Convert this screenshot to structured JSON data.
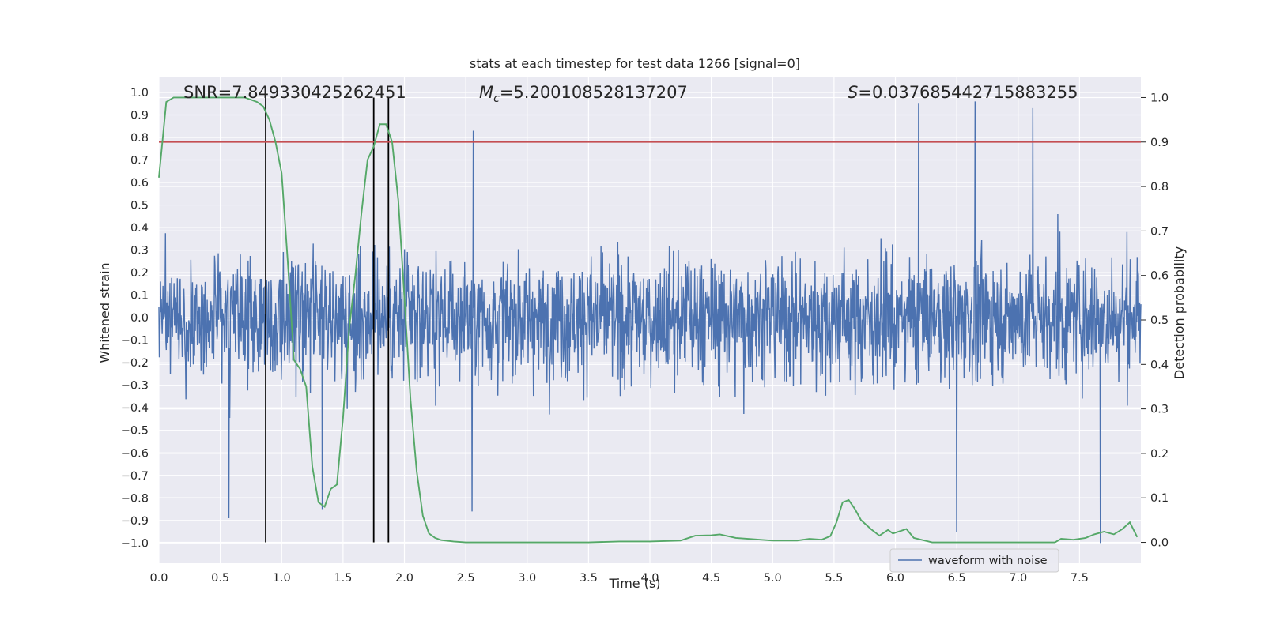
{
  "chart_data": {
    "type": "line",
    "title": "stats at each timestep for test data 1266 [signal=0]",
    "xlabel": "Time (s)",
    "ylabel_left": "Whitened strain",
    "ylabel_right": "Detection probability",
    "xlim": [
      0.0,
      8.0
    ],
    "ylim_left": [
      -1.09,
      1.07
    ],
    "ylim_right": [
      -0.047,
      1.047
    ],
    "x_ticks": [
      "0.0",
      "0.5",
      "1.0",
      "1.5",
      "2.0",
      "2.5",
      "3.0",
      "3.5",
      "4.0",
      "4.5",
      "5.0",
      "5.5",
      "6.0",
      "6.5",
      "7.0",
      "7.5"
    ],
    "y_ticks_left": [
      "1.0",
      "0.9",
      "0.8",
      "0.7",
      "0.6",
      "0.5",
      "0.4",
      "0.3",
      "0.2",
      "0.1",
      "0.0",
      "-0.1",
      "-0.2",
      "-0.3",
      "-0.4",
      "-0.5",
      "-0.6",
      "-0.7",
      "-0.8",
      "-0.9",
      "-1.0"
    ],
    "y_ticks_right": [
      "1.0",
      "0.9",
      "0.8",
      "0.7",
      "0.6",
      "0.5",
      "0.4",
      "0.3",
      "0.2",
      "0.1",
      "0.0"
    ],
    "grid": true,
    "legend_position": "lower-right",
    "annotations": {
      "snr": "SNR=7.849330425262451",
      "mc_symbol": "M",
      "mc_subscript": "c",
      "mc_value": "=5.200108528137207",
      "s_symbol": "S",
      "s_value": "=0.037685442715883255"
    },
    "series": [
      {
        "name": "waveform with noise",
        "axis": "left",
        "color": "#4c72b0",
        "description": "whitened strain noise, bulk amplitude about ±0.4 with spikes up to ±1.0",
        "spikes": [
          {
            "x": 2.56,
            "y": 0.83
          },
          {
            "x": 6.19,
            "y": 0.95
          },
          {
            "x": 6.65,
            "y": 0.96
          },
          {
            "x": 7.12,
            "y": 0.93
          },
          {
            "x": 0.57,
            "y": -0.89
          },
          {
            "x": 2.55,
            "y": -0.86
          },
          {
            "x": 1.33,
            "y": -0.85
          },
          {
            "x": 6.5,
            "y": -0.95
          },
          {
            "x": 7.67,
            "y": -1.0
          }
        ]
      },
      {
        "name": "",
        "axis": "right",
        "color": "#55a868",
        "x": [
          0.0,
          0.06,
          0.12,
          0.25,
          0.5,
          0.7,
          0.8,
          0.85,
          0.9,
          0.95,
          1.0,
          1.05,
          1.1,
          1.15,
          1.2,
          1.25,
          1.3,
          1.35,
          1.4,
          1.45,
          1.5,
          1.55,
          1.6,
          1.65,
          1.7,
          1.75,
          1.8,
          1.85,
          1.9,
          1.95,
          2.0,
          2.05,
          2.1,
          2.15,
          2.2,
          2.25,
          2.3,
          2.4,
          2.5,
          3.0,
          3.5,
          3.75,
          4.0,
          4.25,
          4.37,
          4.5,
          4.57,
          4.7,
          5.0,
          5.2,
          5.3,
          5.4,
          5.47,
          5.52,
          5.57,
          5.62,
          5.67,
          5.72,
          5.8,
          5.87,
          5.94,
          5.98,
          6.09,
          6.15,
          6.3,
          7.0,
          7.3,
          7.35,
          7.45,
          7.55,
          7.62,
          7.7,
          7.78,
          7.85,
          7.91,
          7.97
        ],
        "y": [
          0.82,
          0.99,
          1.0,
          1.0,
          1.0,
          1.0,
          0.99,
          0.98,
          0.95,
          0.9,
          0.83,
          0.63,
          0.41,
          0.39,
          0.35,
          0.17,
          0.09,
          0.08,
          0.12,
          0.13,
          0.28,
          0.48,
          0.6,
          0.74,
          0.86,
          0.89,
          0.94,
          0.94,
          0.9,
          0.77,
          0.55,
          0.32,
          0.16,
          0.06,
          0.02,
          0.01,
          0.005,
          0.002,
          0.0,
          0.0,
          0.0,
          0.002,
          0.002,
          0.004,
          0.015,
          0.016,
          0.018,
          0.01,
          0.004,
          0.004,
          0.008,
          0.006,
          0.014,
          0.045,
          0.09,
          0.095,
          0.075,
          0.05,
          0.03,
          0.015,
          0.028,
          0.02,
          0.03,
          0.01,
          0.0,
          0.0,
          0.0,
          0.008,
          0.006,
          0.01,
          0.018,
          0.024,
          0.018,
          0.03,
          0.045,
          0.012
        ]
      }
    ],
    "threshold": {
      "axis": "right",
      "value": 0.9,
      "color": "#c44e52"
    },
    "vertical_lines": [
      0.87,
      1.75,
      1.87
    ]
  },
  "legend": {
    "label": "waveform with noise"
  }
}
